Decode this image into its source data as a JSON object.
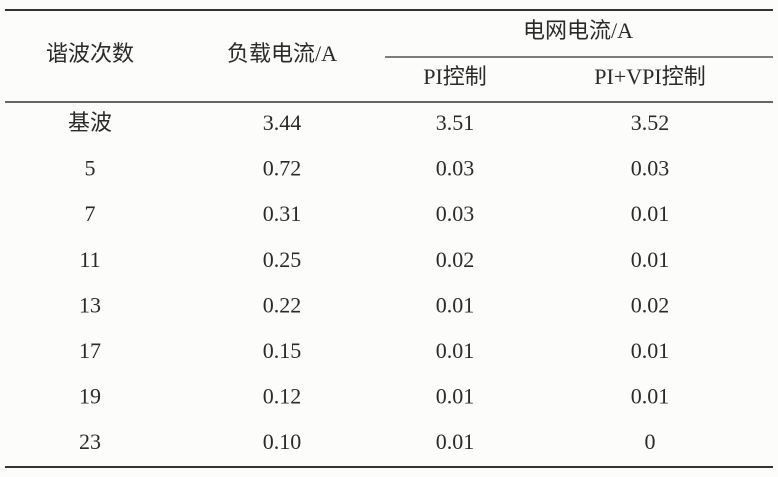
{
  "table": {
    "header": {
      "harmonic": "谐波次数",
      "load": "负载电流/A",
      "grid": "电网电流/A",
      "pi": "PI控制",
      "pivpi": "PI+VPI控制"
    },
    "rows": [
      [
        "基波",
        "3.44",
        "3.51",
        "3.52"
      ],
      [
        "5",
        "0.72",
        "0.03",
        "0.03"
      ],
      [
        "7",
        "0.31",
        "0.03",
        "0.01"
      ],
      [
        "11",
        "0.25",
        "0.02",
        "0.01"
      ],
      [
        "13",
        "0.22",
        "0.01",
        "0.02"
      ],
      [
        "17",
        "0.15",
        "0.01",
        "0.01"
      ],
      [
        "19",
        "0.12",
        "0.01",
        "0.01"
      ],
      [
        "23",
        "0.10",
        "0.01",
        "0"
      ]
    ]
  }
}
